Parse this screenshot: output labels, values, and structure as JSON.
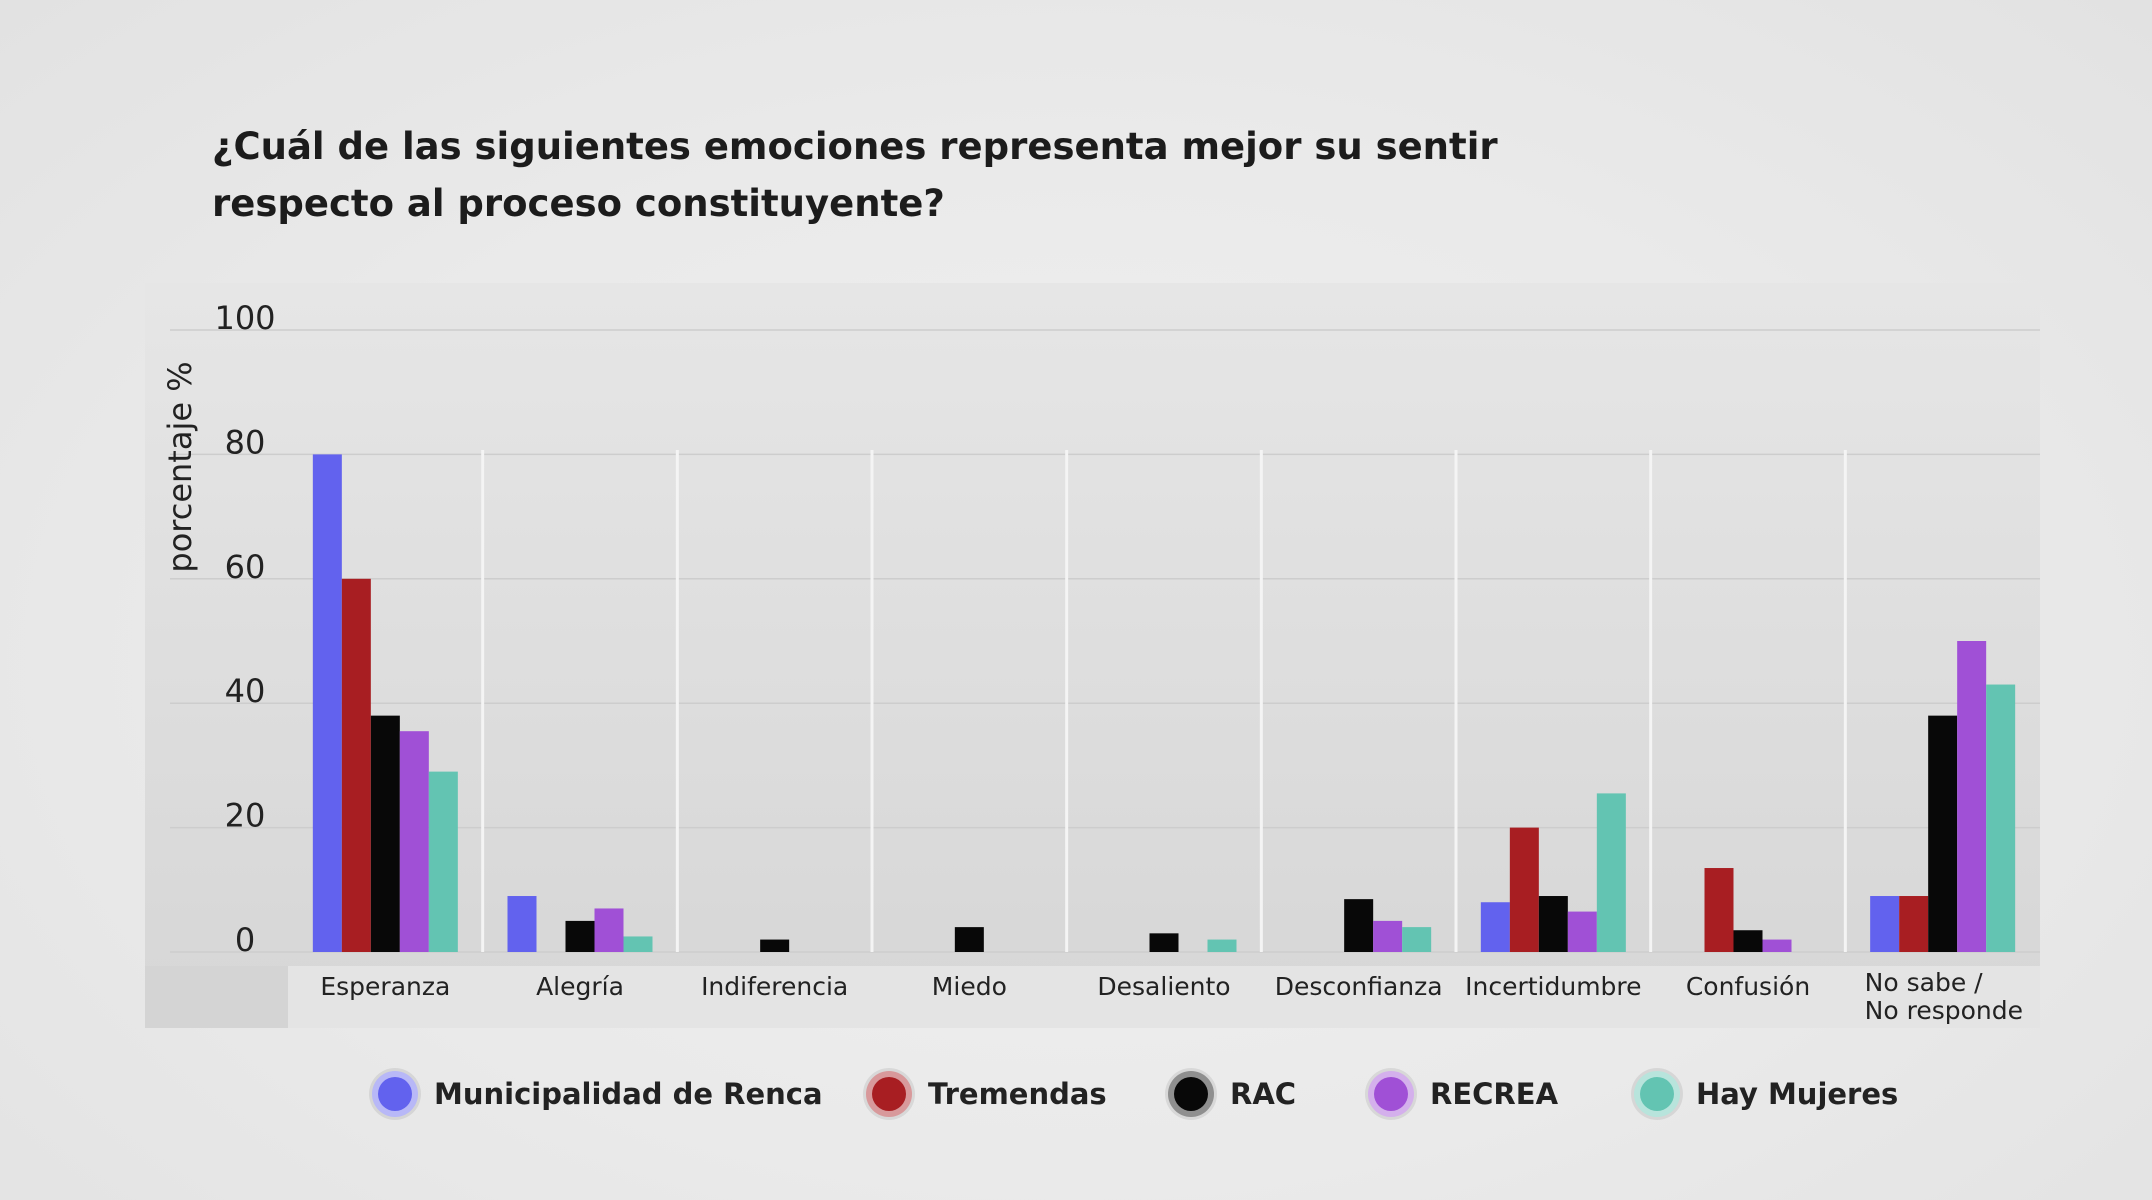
{
  "chart_data": {
    "type": "bar",
    "title_lines": [
      "¿Cuál de las siguientes emociones representa mejor su sentir",
      "respecto al proceso constituyente?"
    ],
    "ylabel": "porcentaje %",
    "xlabel": "",
    "ylim": [
      0,
      100
    ],
    "yticks": [
      "100",
      "80",
      "60",
      "40",
      "20",
      "0"
    ],
    "ytick_values": [
      100,
      80,
      60,
      40,
      20,
      0
    ],
    "grid": true,
    "legend_position": "bottom",
    "categories": [
      "Esperanza",
      "Alegría",
      "Indiferencia",
      "Miedo",
      "Desaliento",
      "Desconfianza",
      "Incertidumbre",
      "Confusión",
      "No sabe /\nNo responde"
    ],
    "series": [
      {
        "name": "Municipalidad de Renca",
        "color": "#6262ee",
        "values": [
          80,
          9,
          0,
          0,
          0,
          0,
          8,
          0,
          9
        ]
      },
      {
        "name": "Tremendas",
        "color": "#a81e22",
        "values": [
          60,
          0,
          0,
          0,
          0,
          0,
          20,
          13.5,
          9
        ]
      },
      {
        "name": "RAC",
        "color": "#080808",
        "values": [
          38,
          5,
          2,
          4,
          3,
          8.5,
          9,
          3.5,
          38
        ]
      },
      {
        "name": "RECREA",
        "color": "#a050d6",
        "values": [
          35.5,
          7,
          0,
          0,
          0,
          5,
          6.5,
          2,
          50
        ]
      },
      {
        "name": "Hay Mujeres",
        "color": "#63c4b2",
        "values": [
          29,
          2.5,
          0,
          0,
          2,
          4,
          25.5,
          0,
          43
        ]
      }
    ]
  }
}
